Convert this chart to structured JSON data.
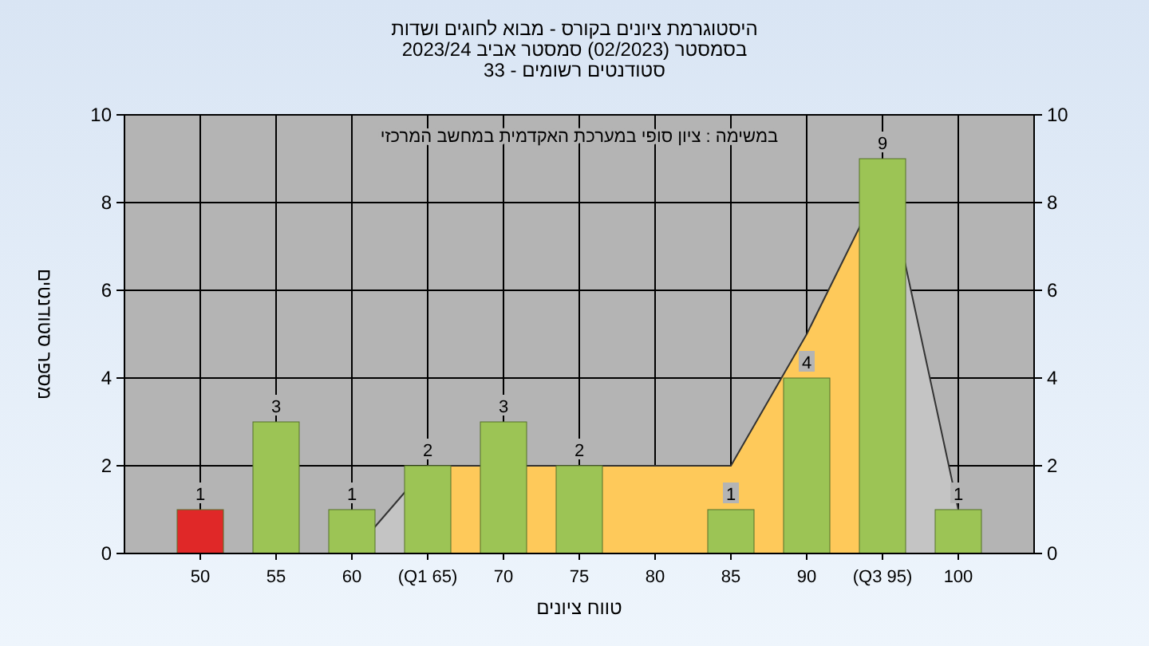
{
  "chart_data": {
    "type": "bar",
    "title": "היסטוגרמת ציונים בקורס - מבוא לחוגים ושדות",
    "subtitle": "בסמסטר  (02/2023)  סמסטר אביב 2023/24\nסטודנטים רשומים - 33",
    "xlabel": "טווח ציונים",
    "ylabel": "מספר סטודנטים",
    "annotations": [
      "במשימה : ציון סופי במערכת האקדמית במחשב המרכזי"
    ],
    "categories": [
      "50",
      "55",
      "60",
      "(Q1 65)",
      "70",
      "75",
      "80",
      "85",
      "90",
      "(Q3 95)",
      "100"
    ],
    "series": [
      {
        "type": "area",
        "color": "#c4c4c4",
        "values": [
          0,
          0,
          0,
          2,
          null,
          null,
          null,
          null,
          null,
          9,
          1
        ]
      },
      {
        "type": "area",
        "color": "#fec95a",
        "values": [
          null,
          null,
          null,
          2,
          2,
          2,
          2,
          2,
          5,
          8.5,
          null
        ]
      },
      {
        "colors": [
          "#e02828",
          "#9cc455",
          "#9cc455",
          "#9cc455",
          "#9cc455",
          "#9cc455",
          "#9cc455",
          "#9cc455",
          "#9cc455",
          "#9cc455",
          "#9cc455"
        ],
        "values": [
          1,
          3,
          1,
          2,
          3,
          2,
          0,
          1,
          4,
          9,
          1
        ],
        "value_labels": [
          "1",
          "3",
          "1",
          "2",
          "3",
          "2",
          null,
          "1",
          "4",
          "9",
          "1"
        ]
      }
    ],
    "ylim": [
      0,
      10
    ],
    "yticks": [
      0,
      2,
      4,
      6,
      8,
      10
    ],
    "y2lim": [
      0,
      10
    ],
    "y2ticks": [
      0,
      2,
      4,
      6,
      8,
      10
    ],
    "grid": true
  }
}
